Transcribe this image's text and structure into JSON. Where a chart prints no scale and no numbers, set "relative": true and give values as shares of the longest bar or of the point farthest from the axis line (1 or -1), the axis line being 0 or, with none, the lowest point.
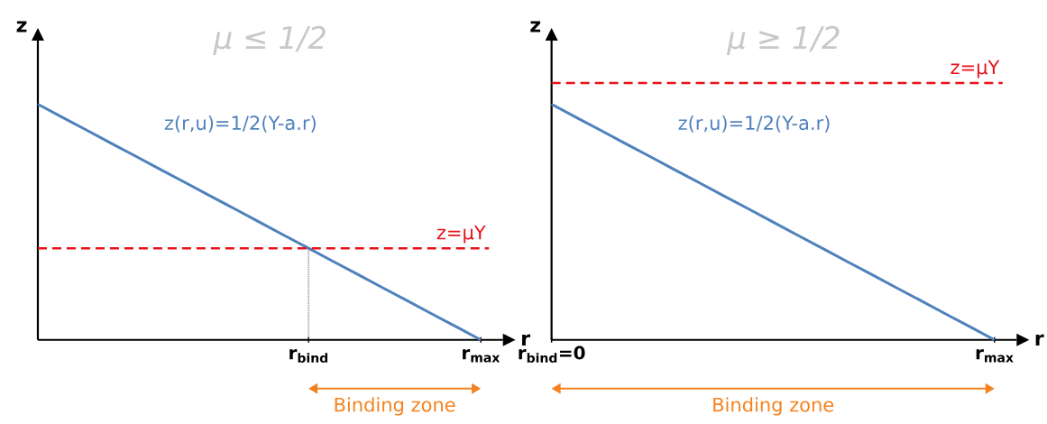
{
  "chart_data": [
    {
      "type": "line",
      "title": "μ ≤ 1/2",
      "xlabel": "r",
      "ylabel": "z",
      "relative": true,
      "categories": [
        null,
        null,
        null,
        null,
        null,
        null,
        null,
        null,
        null,
        null,
        null,
        "r$_{bind}$",
        null,
        null,
        null,
        null,
        null,
        null,
        "r$_{max}$"
      ],
      "series": [
        {
          "name": "z(r,u)=1/2(Y-a.r)",
          "color": "#4f81bd",
          "values": [
            1,
            0.944,
            0.889,
            0.833,
            0.778,
            0.722,
            0.667,
            0.611,
            0.556,
            0.5,
            0.444,
            0.389,
            0.333,
            0.278,
            0.222,
            0.167,
            0.111,
            0.056,
            0
          ]
        }
      ],
      "ref_lines": [
        {
          "axis": "y",
          "value": 0.389,
          "label": "z=μY",
          "color": "#e8121a",
          "line_style": "dashed"
        },
        {
          "axis": "x",
          "value": "r$_{bind}$",
          "color": "#404040",
          "line_style": "dotted"
        }
      ],
      "annotations": [
        "Binding zone"
      ],
      "marker": "none"
    },
    {
      "type": "line",
      "title": "μ ≥ 1/2",
      "xlabel": "r",
      "ylabel": "z",
      "relative": true,
      "categories": [
        "r$_{bind}$=0",
        null,
        null,
        null,
        null,
        null,
        null,
        null,
        null,
        null,
        null,
        null,
        null,
        null,
        null,
        null,
        null,
        null,
        "r$_{max}$"
      ],
      "series": [
        {
          "name": "z(r,u)=1/2(Y-a.r)",
          "color": "#4f81bd",
          "values": [
            1,
            0.944,
            0.889,
            0.833,
            0.778,
            0.722,
            0.667,
            0.611,
            0.556,
            0.5,
            0.444,
            0.389,
            0.333,
            0.278,
            0.222,
            0.167,
            0.111,
            0.056,
            0
          ]
        }
      ],
      "ref_lines": [
        {
          "axis": "y",
          "value": 1.09,
          "label": "z=μY",
          "color": "#e8121a",
          "line_style": "dashed"
        }
      ],
      "annotations": [
        "Binding zone"
      ],
      "marker": "none"
    }
  ]
}
